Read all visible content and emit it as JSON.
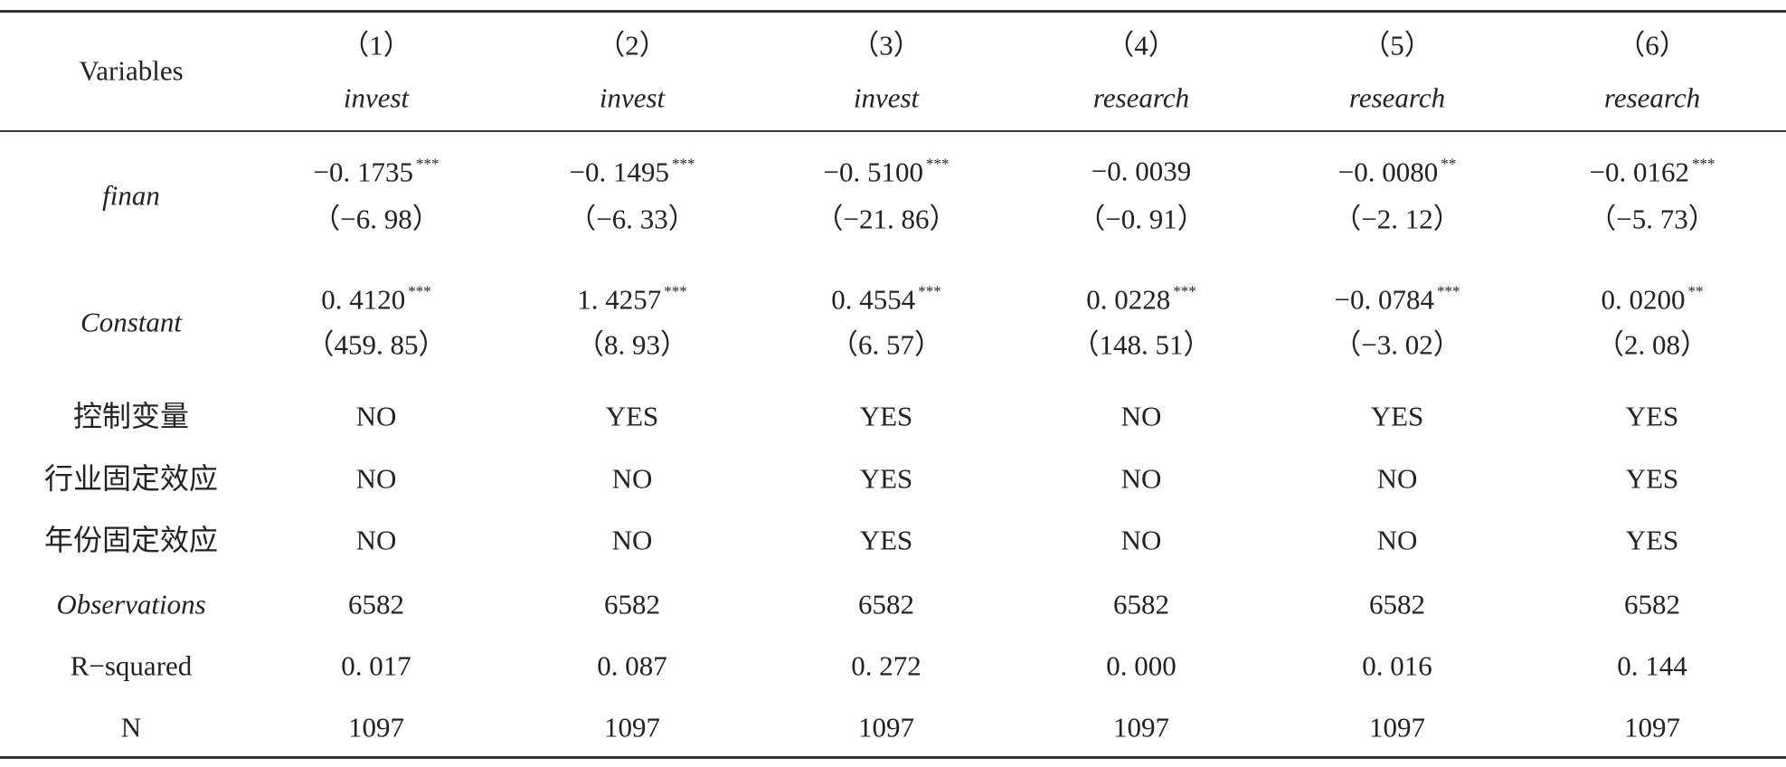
{
  "table": {
    "header": {
      "label": "Variables",
      "columns": [
        {
          "number": "（1）",
          "dependent": "invest"
        },
        {
          "number": "（2）",
          "dependent": "invest"
        },
        {
          "number": "（3）",
          "dependent": "invest"
        },
        {
          "number": "（4）",
          "dependent": "research"
        },
        {
          "number": "（5）",
          "dependent": "research"
        },
        {
          "number": "（6）",
          "dependent": "research"
        }
      ]
    },
    "rows": [
      {
        "label": "finan",
        "cells": [
          {
            "coef": "−0. 1735",
            "stars": "***",
            "t": "（−6. 98）"
          },
          {
            "coef": "−0. 1495",
            "stars": "***",
            "t": "（−6. 33）"
          },
          {
            "coef": "−0. 5100",
            "stars": "***",
            "t": "（−21. 86）"
          },
          {
            "coef": "−0. 0039",
            "t": "（−0. 91）"
          },
          {
            "coef": "−0. 0080",
            "stars": "**",
            "t": "（−2. 12）"
          },
          {
            "coef": "−0. 0162",
            "stars": "***",
            "t": "（−5. 73）"
          }
        ]
      },
      {
        "label": "Constant",
        "cells": [
          {
            "coef": "0. 4120",
            "stars": "***",
            "t": "（459. 85）"
          },
          {
            "coef": "1. 4257",
            "stars": "***",
            "t": "（8. 93）"
          },
          {
            "coef": "0. 4554",
            "stars": "***",
            "t": "（6. 57）"
          },
          {
            "coef": "0. 0228",
            "stars": "***",
            "t": "（148. 51）"
          },
          {
            "coef": "−0. 0784",
            "stars": "***",
            "t": "（−3. 02）"
          },
          {
            "coef": "0. 0200",
            "stars": "**",
            "t": "（2. 08）"
          }
        ]
      },
      {
        "label": "控制变量",
        "cells": [
          "NO",
          "YES",
          "YES",
          "NO",
          "YES",
          "YES"
        ]
      },
      {
        "label": "行业固定效应",
        "cells": [
          "NO",
          "NO",
          "YES",
          "NO",
          "NO",
          "YES"
        ]
      },
      {
        "label": "年份固定效应",
        "cells": [
          "NO",
          "NO",
          "YES",
          "NO",
          "NO",
          "YES"
        ]
      },
      {
        "label": "Observations",
        "cells": [
          "6582",
          "6582",
          "6582",
          "6582",
          "6582",
          "6582"
        ]
      },
      {
        "label": "R−squared",
        "cells": [
          "0. 017",
          "0. 087",
          "0. 272",
          "0. 000",
          "0. 016",
          "0. 144"
        ]
      },
      {
        "label": "N",
        "cells": [
          "1097",
          "1097",
          "1097",
          "1097",
          "1097",
          "1097"
        ]
      }
    ]
  }
}
